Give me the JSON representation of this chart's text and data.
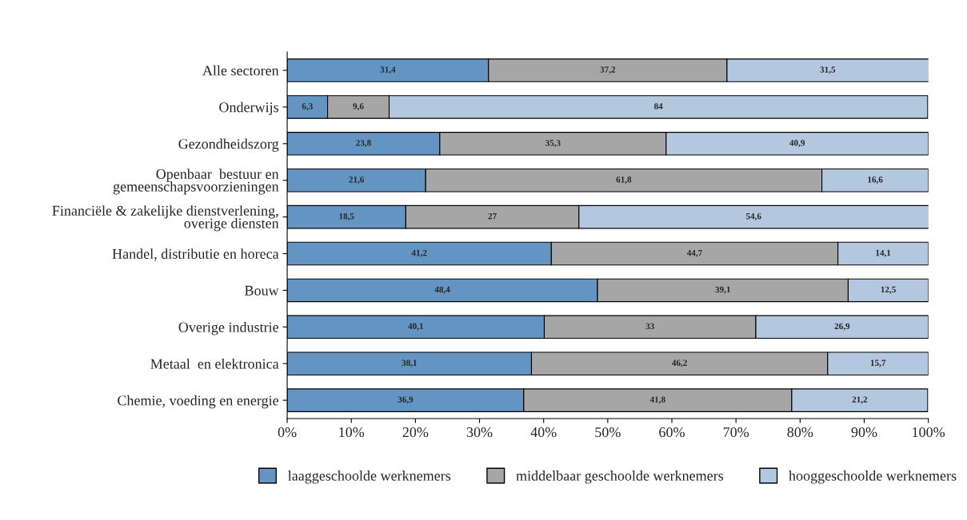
{
  "chart_data": {
    "type": "bar",
    "orientation": "horizontal",
    "stacked": true,
    "legend": "bottom",
    "grid": false,
    "categories": [
      "Alle sectoren",
      "Onderwijs",
      "Gezondheidszorg",
      "Openbaar  bestuur en\ngemeenschapsvoorzieningen",
      "Financiële & zakelijke dienstverlening,\noverige diensten",
      "Handel, distributie en horeca",
      "Bouw",
      "Overige industrie",
      "Metaal  en elektronica",
      "Chemie, voeding en energie"
    ],
    "series": [
      {
        "name": "laaggeschoolde werknemers",
        "color": "#6495c2",
        "values": [
          31.4,
          6.3,
          23.8,
          21.6,
          18.5,
          41.2,
          48.4,
          40.1,
          38.1,
          36.9
        ],
        "value_labels": [
          "31,4",
          "6,3",
          "23,8",
          "21,6",
          "18,5",
          "41,2",
          "48,4",
          "40,1",
          "38,1",
          "36,9"
        ]
      },
      {
        "name": "middelbaar geschoolde werknemers",
        "color": "#a6a6a6",
        "values": [
          37.2,
          9.6,
          35.3,
          61.8,
          27,
          44.7,
          39.1,
          33,
          46.2,
          41.8
        ],
        "value_labels": [
          "37,2",
          "9,6",
          "35,3",
          "61,8",
          "27",
          "44,7",
          "39,1",
          "33",
          "46,2",
          "41,8"
        ]
      },
      {
        "name": "hooggeschoolde werknemers",
        "color": "#b3c7de",
        "values": [
          31.5,
          84,
          40.9,
          16.6,
          54.6,
          14.1,
          12.5,
          26.9,
          15.7,
          21.2
        ],
        "value_labels": [
          "31,5",
          "84",
          "40,9",
          "16,6",
          "54,6",
          "14,1",
          "12,5",
          "26,9",
          "15,7",
          "21,2"
        ]
      }
    ],
    "xlim": [
      0,
      100
    ],
    "xticks": [
      {
        "value": 0,
        "label": "0%"
      },
      {
        "value": 10,
        "label": "10%"
      },
      {
        "value": 20,
        "label": "20%"
      },
      {
        "value": 30,
        "label": "30%"
      },
      {
        "value": 40,
        "label": "40%"
      },
      {
        "value": 50,
        "label": "50%"
      },
      {
        "value": 60,
        "label": "60%"
      },
      {
        "value": 70,
        "label": "70%"
      },
      {
        "value": 80,
        "label": "80%"
      },
      {
        "value": 90,
        "label": "90%"
      },
      {
        "value": 100,
        "label": "100%"
      }
    ]
  }
}
